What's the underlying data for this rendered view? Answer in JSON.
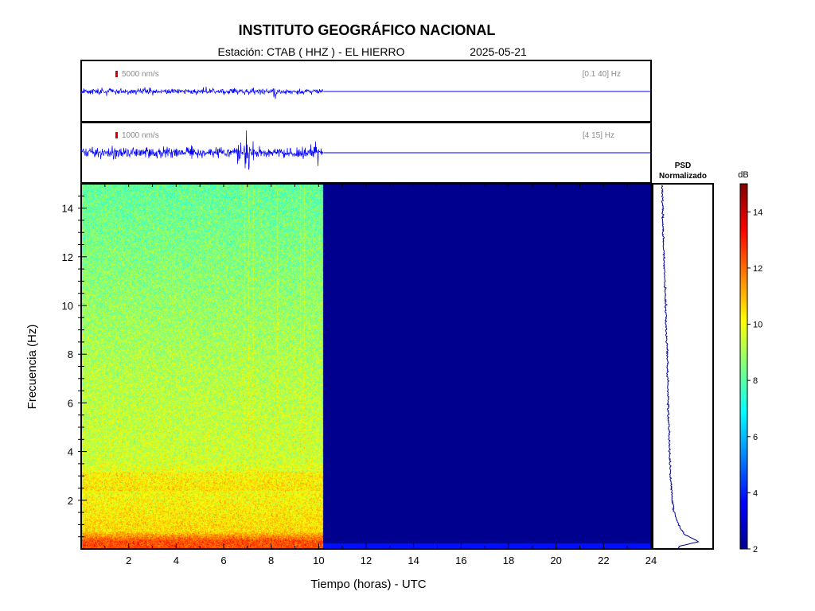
{
  "header": {
    "title": "INSTITUTO GEOGRÁFICO NACIONAL",
    "station": "Estación:  CTAB ( HHZ ) - EL HIERRO",
    "date": "2025-05-21"
  },
  "traces": [
    {
      "scale_label": "5000 nm/s",
      "band_label": "[0.1 40] Hz",
      "scale_color": "#dd0000",
      "trace_color": "#0000ff"
    },
    {
      "scale_label": "1000 nm/s",
      "band_label": "[4 15] Hz",
      "scale_color": "#dd0000",
      "trace_color": "#0000ff"
    }
  ],
  "psd": {
    "label_line1": "PSD",
    "label_line2": "Normalizado",
    "line_color": "#00008b"
  },
  "colorbar": {
    "unit": "dB",
    "min": 2,
    "max": 15,
    "ticks": [
      "2",
      "4",
      "6",
      "8",
      "10",
      "12",
      "14"
    ]
  },
  "chart_data": {
    "type": "heatmap",
    "title": "INSTITUTO GEOGRÁFICO NACIONAL",
    "subtitle": "Estación:  CTAB ( HHZ ) - EL HIERRO",
    "xlabel": "Tiempo (horas) - UTC",
    "ylabel": "Frecuencia  (Hz)",
    "xlim": [
      0,
      24
    ],
    "ylim": [
      0,
      15
    ],
    "xticks": [
      "2",
      "4",
      "6",
      "8",
      "10",
      "12",
      "14",
      "16",
      "18",
      "20",
      "22",
      "24"
    ],
    "yticks": [
      "2",
      "4",
      "6",
      "8",
      "10",
      "12",
      "14"
    ],
    "data_end_hour": 10.2,
    "colormap": "jet",
    "psd_profile": {
      "frequency_hz": [
        0.1,
        0.3,
        0.6,
        1.0,
        1.5,
        2.0,
        2.5,
        3.0,
        4.0,
        5.0,
        6.0,
        7.0,
        8.0,
        9.0,
        10.0,
        11.0,
        12.0,
        13.0,
        14.0,
        15.0
      ],
      "normalized_value": [
        0.45,
        0.95,
        0.6,
        0.45,
        0.35,
        0.3,
        0.28,
        0.26,
        0.24,
        0.22,
        0.2,
        0.19,
        0.18,
        0.16,
        0.14,
        0.12,
        0.1,
        0.08,
        0.07,
        0.06
      ]
    }
  }
}
